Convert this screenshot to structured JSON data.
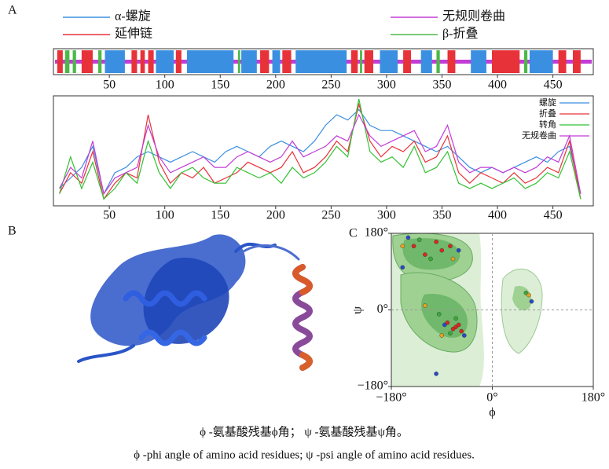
{
  "panel_labels": [
    "A",
    "B",
    "C"
  ],
  "caption": {
    "zh": "ϕ -氨基酸残基ϕ角；  ψ -氨基酸残基ψ角。",
    "en": "ϕ -phi angle of amino acid residues;  ψ -psi angle of amino acid residues."
  },
  "chart_data": [
    {
      "type": "track",
      "xlim": [
        1,
        485
      ],
      "xticks": [
        50,
        100,
        150,
        200,
        250,
        300,
        350,
        400,
        450
      ],
      "series": [
        {
          "name": "α-螺旋",
          "color": "#3b8fe0",
          "ranges": [
            [
              46,
              64
            ],
            [
              92,
              108
            ],
            [
              120,
              162
            ],
            [
              169,
              183
            ],
            [
              197,
              204
            ],
            [
              218,
              264
            ],
            [
              294,
              310
            ],
            [
              331,
              341
            ],
            [
              376,
              390
            ],
            [
              429,
              450
            ]
          ]
        },
        {
          "name": "延伸链",
          "color": "#e8323a",
          "ranges": [
            [
              3,
              8
            ],
            [
              25,
              35
            ],
            [
              70,
              75
            ],
            [
              78,
              82
            ],
            [
              85,
              90
            ],
            [
              110,
              115
            ],
            [
              186,
              194
            ],
            [
              206,
              214
            ],
            [
              268,
              274
            ],
            [
              280,
              288
            ],
            [
              315,
              322
            ],
            [
              355,
              362
            ],
            [
              395,
              420
            ],
            [
              455,
              462
            ],
            [
              468,
              475
            ]
          ]
        },
        {
          "name": "无规则卷曲",
          "color": "#c23cd6",
          "ranges": [
            [
              1,
              485
            ]
          ]
        },
        {
          "name": "β-折叠",
          "color": "#4cb848",
          "ranges": [
            [
              10,
              14
            ],
            [
              17,
              20
            ],
            [
              40,
              43
            ],
            [
              166,
              168
            ],
            [
              276,
              278
            ],
            [
              345,
              348
            ],
            [
              424,
              427
            ]
          ]
        }
      ]
    },
    {
      "type": "line",
      "xlim": [
        1,
        485
      ],
      "ylim": [
        0,
        1
      ],
      "xticks": [
        50,
        100,
        150,
        200,
        250,
        300,
        350,
        400,
        450
      ],
      "x": [
        5,
        15,
        25,
        35,
        45,
        55,
        65,
        75,
        85,
        95,
        105,
        115,
        125,
        135,
        145,
        155,
        165,
        175,
        185,
        195,
        205,
        215,
        225,
        235,
        245,
        255,
        265,
        275,
        285,
        295,
        305,
        315,
        325,
        335,
        345,
        355,
        365,
        375,
        385,
        395,
        405,
        415,
        425,
        435,
        445,
        455,
        465,
        475
      ],
      "series": [
        {
          "name": "螺旋",
          "color": "#3b8fe0",
          "values": [
            0.15,
            0.25,
            0.35,
            0.55,
            0.1,
            0.3,
            0.35,
            0.45,
            0.5,
            0.45,
            0.4,
            0.45,
            0.5,
            0.45,
            0.4,
            0.5,
            0.55,
            0.5,
            0.45,
            0.55,
            0.6,
            0.55,
            0.5,
            0.6,
            0.75,
            0.85,
            0.8,
            0.9,
            0.75,
            0.7,
            0.7,
            0.65,
            0.6,
            0.55,
            0.5,
            0.55,
            0.45,
            0.35,
            0.3,
            0.35,
            0.3,
            0.35,
            0.4,
            0.45,
            0.4,
            0.5,
            0.55,
            0.1
          ]
        },
        {
          "name": "折叠",
          "color": "#e8323a",
          "values": [
            0.1,
            0.3,
            0.2,
            0.5,
            0.05,
            0.2,
            0.3,
            0.25,
            0.85,
            0.4,
            0.2,
            0.3,
            0.25,
            0.35,
            0.2,
            0.25,
            0.3,
            0.4,
            0.35,
            0.3,
            0.35,
            0.5,
            0.3,
            0.35,
            0.45,
            0.6,
            0.5,
            0.95,
            0.6,
            0.45,
            0.55,
            0.5,
            0.6,
            0.4,
            0.45,
            0.65,
            0.3,
            0.2,
            0.3,
            0.25,
            0.2,
            0.3,
            0.2,
            0.25,
            0.35,
            0.3,
            0.6,
            0.05
          ]
        },
        {
          "name": "转角",
          "color": "#33c233",
          "values": [
            0.1,
            0.45,
            0.15,
            0.4,
            0.05,
            0.15,
            0.3,
            0.2,
            0.6,
            0.3,
            0.15,
            0.3,
            0.35,
            0.25,
            0.2,
            0.2,
            0.35,
            0.3,
            0.25,
            0.3,
            0.2,
            0.35,
            0.25,
            0.3,
            0.4,
            0.55,
            0.45,
            1.0,
            0.5,
            0.4,
            0.45,
            0.35,
            0.55,
            0.3,
            0.35,
            0.5,
            0.2,
            0.15,
            0.2,
            0.15,
            0.2,
            0.25,
            0.15,
            0.2,
            0.3,
            0.25,
            0.5,
            0.05
          ]
        },
        {
          "name": "无规卷曲",
          "color": "#c23cd6",
          "values": [
            0.15,
            0.35,
            0.25,
            0.6,
            0.1,
            0.25,
            0.3,
            0.35,
            0.75,
            0.45,
            0.3,
            0.35,
            0.4,
            0.45,
            0.35,
            0.35,
            0.45,
            0.5,
            0.45,
            0.4,
            0.45,
            0.6,
            0.45,
            0.5,
            0.55,
            0.65,
            0.6,
            0.85,
            0.65,
            0.55,
            0.6,
            0.65,
            0.7,
            0.5,
            0.55,
            0.75,
            0.4,
            0.3,
            0.35,
            0.35,
            0.3,
            0.35,
            0.3,
            0.35,
            0.45,
            0.4,
            0.65,
            0.1
          ]
        }
      ]
    },
    {
      "type": "scatter",
      "xlabel": "ϕ",
      "ylabel": "ψ",
      "xlim": [
        -180,
        180
      ],
      "ylim": [
        -180,
        180
      ],
      "xticks": [
        {
          "value": -180,
          "label": "−180°"
        },
        {
          "value": 0,
          "label": "0°"
        },
        {
          "value": 180,
          "label": "180°"
        }
      ],
      "yticks": [
        {
          "value": -180,
          "label": "−180°"
        },
        {
          "value": 0,
          "label": "0°"
        },
        {
          "value": 180,
          "label": "180°"
        }
      ],
      "series": [
        {
          "color": "#d9281e",
          "x": [
            -65,
            -60,
            -70,
            -80,
            -55,
            -90,
            -120,
            -75,
            -100,
            -140
          ],
          "y": [
            -40,
            -35,
            -45,
            -30,
            -50,
            140,
            130,
            150,
            160,
            150
          ]
        },
        {
          "color": "#3aa83a",
          "x": [
            -110,
            -65,
            -95,
            -130,
            60,
            -75
          ],
          "y": [
            120,
            -20,
            -10,
            165,
            40,
            -55
          ]
        },
        {
          "color": "#2848c8",
          "x": [
            -150,
            -60,
            -85,
            -50,
            -160,
            70,
            -100
          ],
          "y": [
            170,
            140,
            -35,
            -60,
            100,
            20,
            -150
          ]
        },
        {
          "color": "#e8a020",
          "x": [
            -120,
            -70,
            -90,
            65,
            -160
          ],
          "y": [
            10,
            120,
            -60,
            35,
            150
          ]
        }
      ]
    }
  ]
}
